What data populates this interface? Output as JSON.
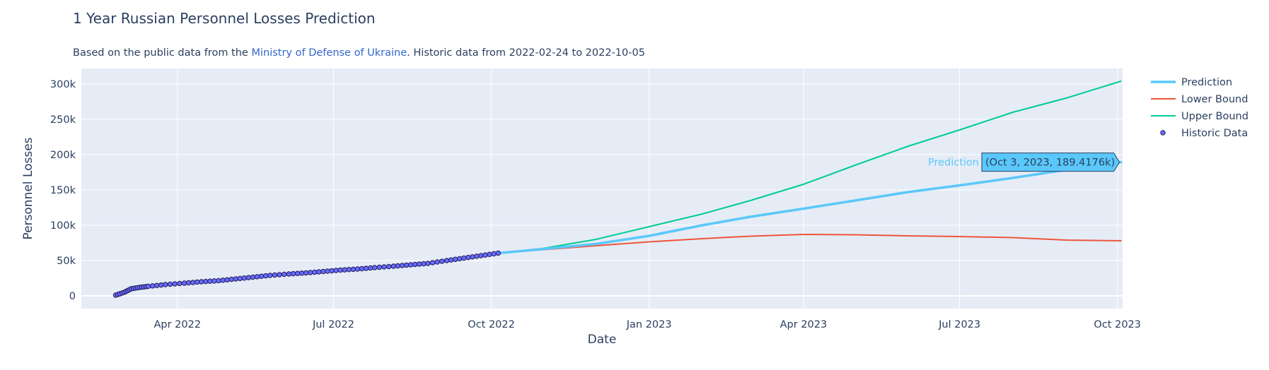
{
  "title": "1 Year Russian Personnel Losses Prediction",
  "subtitle": {
    "prefix": "Based on the public data from the ",
    "link_text": "Ministry of Defense of Ukraine",
    "suffix": ". Historic data from 2022-02-24 to 2022-10-05"
  },
  "chart_data": {
    "type": "line",
    "xlabel": "Date",
    "ylabel": "Personnel Losses",
    "xlim": [
      "2022-02-04",
      "2023-10-04"
    ],
    "ylim": [
      -18000,
      322000
    ],
    "grid": true,
    "legend_position": "top-right",
    "x_ticks": [
      {
        "date": "2022-04-01",
        "label": "Apr 2022"
      },
      {
        "date": "2022-07-01",
        "label": "Jul 2022"
      },
      {
        "date": "2022-10-01",
        "label": "Oct 2022"
      },
      {
        "date": "2023-01-01",
        "label": "Jan 2023"
      },
      {
        "date": "2023-04-01",
        "label": "Apr 2023"
      },
      {
        "date": "2023-07-01",
        "label": "Jul 2023"
      },
      {
        "date": "2023-10-01",
        "label": "Oct 2023"
      }
    ],
    "y_ticks": [
      {
        "value": 0,
        "label": "0"
      },
      {
        "value": 50000,
        "label": "50k"
      },
      {
        "value": 100000,
        "label": "100k"
      },
      {
        "value": 150000,
        "label": "150k"
      },
      {
        "value": 200000,
        "label": "200k"
      },
      {
        "value": 250000,
        "label": "250k"
      },
      {
        "value": 300000,
        "label": "300k"
      }
    ],
    "series": [
      {
        "name": "Prediction",
        "color": "#5ac8fa",
        "mode": "line",
        "width": 3.5,
        "points": [
          [
            "2022-10-05",
            60500
          ],
          [
            "2022-11-01",
            66500
          ],
          [
            "2022-12-01",
            73500
          ],
          [
            "2023-01-01",
            85000
          ],
          [
            "2023-02-01",
            100000
          ],
          [
            "2023-03-01",
            112000
          ],
          [
            "2023-04-01",
            123500
          ],
          [
            "2023-05-01",
            135000
          ],
          [
            "2023-06-01",
            147000
          ],
          [
            "2023-07-01",
            156500
          ],
          [
            "2023-08-01",
            167000
          ],
          [
            "2023-09-01",
            178500
          ],
          [
            "2023-10-03",
            189418
          ]
        ]
      },
      {
        "name": "Lower Bound",
        "color": "#ef553b",
        "mode": "line",
        "width": 2,
        "points": [
          [
            "2022-10-05",
            60500
          ],
          [
            "2022-11-01",
            65500
          ],
          [
            "2022-12-01",
            71000
          ],
          [
            "2023-01-01",
            76500
          ],
          [
            "2023-02-01",
            81000
          ],
          [
            "2023-03-01",
            84500
          ],
          [
            "2023-04-01",
            87000
          ],
          [
            "2023-05-01",
            86500
          ],
          [
            "2023-06-01",
            85000
          ],
          [
            "2023-07-01",
            84000
          ],
          [
            "2023-08-01",
            82500
          ],
          [
            "2023-09-01",
            79000
          ],
          [
            "2023-10-03",
            78000
          ]
        ]
      },
      {
        "name": "Upper Bound",
        "color": "#00cc96",
        "mode": "line",
        "width": 2,
        "points": [
          [
            "2022-10-05",
            60500
          ],
          [
            "2022-11-01",
            67500
          ],
          [
            "2022-12-01",
            80000
          ],
          [
            "2023-01-01",
            98000
          ],
          [
            "2023-02-01",
            116000
          ],
          [
            "2023-03-01",
            135000
          ],
          [
            "2023-04-01",
            158000
          ],
          [
            "2023-05-01",
            185000
          ],
          [
            "2023-06-01",
            212000
          ],
          [
            "2023-07-01",
            235000
          ],
          [
            "2023-08-01",
            260000
          ],
          [
            "2023-09-01",
            280000
          ],
          [
            "2023-10-03",
            304000
          ]
        ]
      },
      {
        "name": "Historic Data",
        "color": "#636efa",
        "mode": "markers",
        "points": [
          [
            "2022-02-24",
            1000
          ],
          [
            "2022-03-01",
            5000
          ],
          [
            "2022-03-05",
            10000
          ],
          [
            "2022-03-10",
            12000
          ],
          [
            "2022-03-15",
            13500
          ],
          [
            "2022-03-25",
            16000
          ],
          [
            "2022-04-05",
            18000
          ],
          [
            "2022-04-15",
            20000
          ],
          [
            "2022-04-25",
            21500
          ],
          [
            "2022-05-05",
            24000
          ],
          [
            "2022-05-15",
            26500
          ],
          [
            "2022-05-25",
            29000
          ],
          [
            "2022-06-05",
            31000
          ],
          [
            "2022-06-15",
            32500
          ],
          [
            "2022-06-25",
            34500
          ],
          [
            "2022-07-05",
            36500
          ],
          [
            "2022-07-15",
            38000
          ],
          [
            "2022-07-25",
            40000
          ],
          [
            "2022-08-05",
            42000
          ],
          [
            "2022-08-15",
            44000
          ],
          [
            "2022-08-25",
            46000
          ],
          [
            "2022-09-05",
            50000
          ],
          [
            "2022-09-15",
            53500
          ],
          [
            "2022-09-25",
            57000
          ],
          [
            "2022-10-05",
            60500
          ]
        ]
      }
    ],
    "hover": {
      "series": "Prediction",
      "date": "2023-10-03",
      "value": 189418,
      "label": "(Oct 3, 2023, 189.4176k)"
    }
  }
}
